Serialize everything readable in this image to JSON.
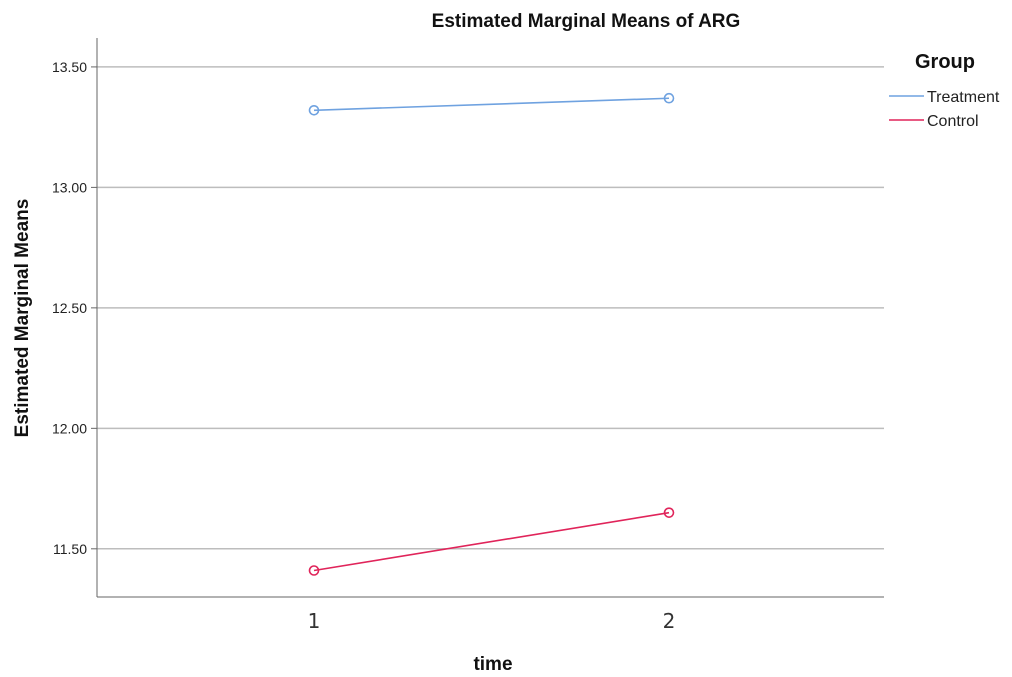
{
  "chart_data": {
    "type": "line",
    "title": "Estimated Marginal Means of ARG",
    "xlabel": "time",
    "ylabel": "Estimated Marginal Means",
    "categories": [
      "1",
      "2"
    ],
    "ylim": [
      11.3,
      13.62
    ],
    "yticks": [
      "11.50",
      "12.00",
      "12.50",
      "13.00",
      "13.50"
    ],
    "grid": true,
    "legend": {
      "title": "Group",
      "placement": "right"
    },
    "series": [
      {
        "name": "Treatment",
        "values": [
          13.32,
          13.37
        ],
        "color": "#6fa2e0"
      },
      {
        "name": "Control",
        "values": [
          11.41,
          11.65
        ],
        "color": "#e0245a"
      }
    ]
  }
}
